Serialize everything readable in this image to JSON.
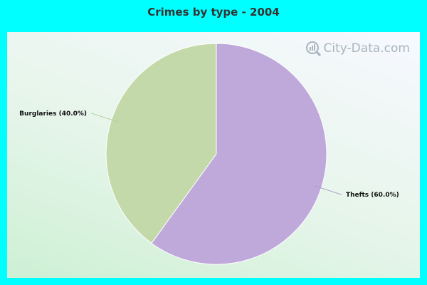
{
  "chart_data": {
    "type": "pie",
    "title": "Crimes by type - 2004",
    "slices": [
      {
        "label": "Thefts (60.0%)",
        "value": 60.0,
        "color": "#bfa8da"
      },
      {
        "label": "Burglaries (40.0%)",
        "value": 40.0,
        "color": "#c4d9a9"
      }
    ]
  },
  "watermark": {
    "text": "City-Data.com",
    "icon": "magnifier-chart-icon"
  }
}
